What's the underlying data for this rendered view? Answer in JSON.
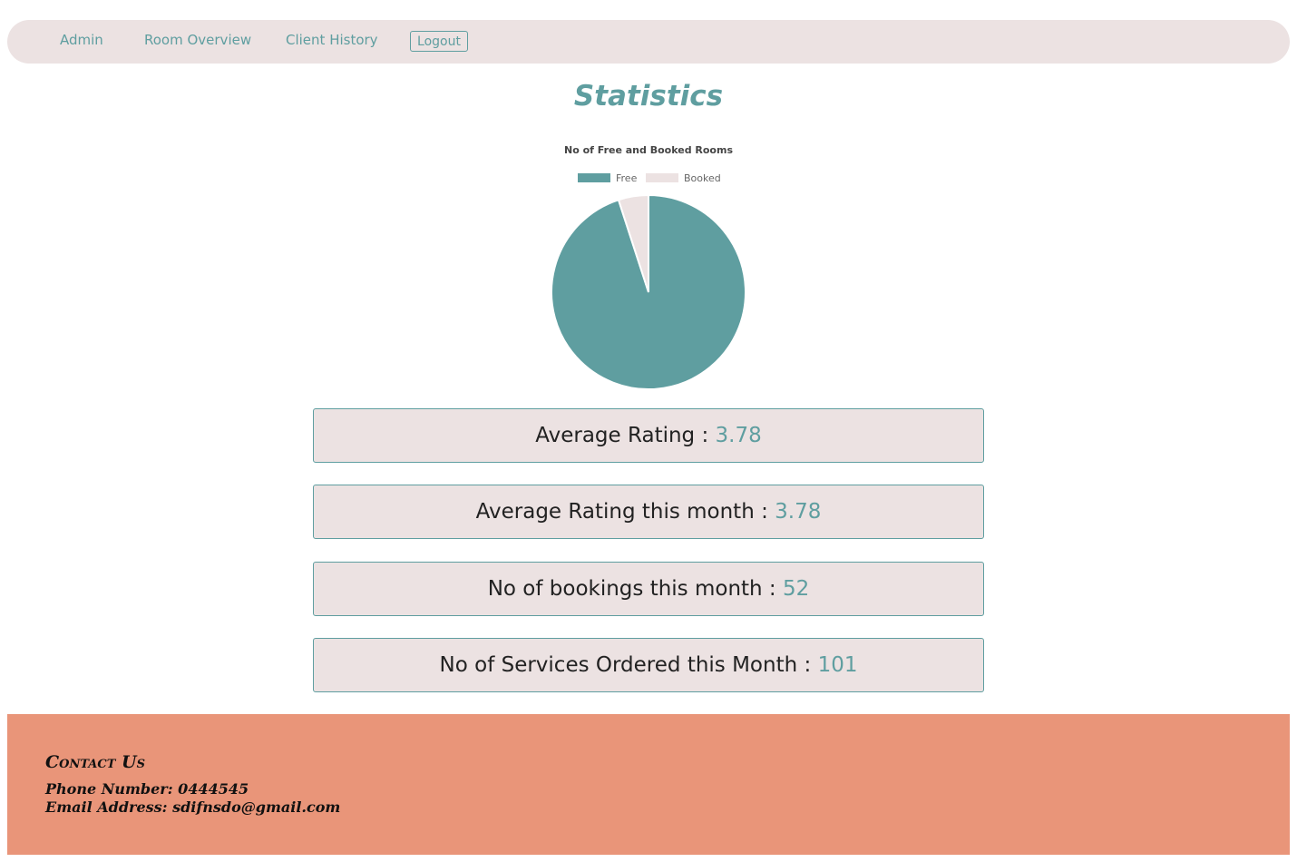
{
  "nav": {
    "items": [
      "Admin",
      "Room Overview",
      "Client History"
    ],
    "logout_label": "Logout"
  },
  "page": {
    "title": "Statistics"
  },
  "colors": {
    "accent": "#5f9ea0",
    "nav_bg": "#ece2e2",
    "footer_bg": "#e99579",
    "booked": "#ece2e2"
  },
  "chart_data": {
    "type": "pie",
    "title": "No of Free and Booked Rooms",
    "legend_position": "top",
    "categories": [
      "Free",
      "Booked"
    ],
    "values": [
      95,
      5
    ],
    "colors": [
      "#5f9ea0",
      "#ece2e2"
    ]
  },
  "stats": [
    {
      "label": "Average Rating :",
      "value": "3.78"
    },
    {
      "label": "Average Rating this month :",
      "value": "3.78"
    },
    {
      "label": "No of bookings this month :",
      "value": "52"
    },
    {
      "label": "No of Services Ordered this Month :",
      "value": "101"
    }
  ],
  "footer": {
    "heading": "Contact Us",
    "phone": "Phone Number: 0444545",
    "email": "Email Address: sdifnsdo@gmail.com"
  }
}
